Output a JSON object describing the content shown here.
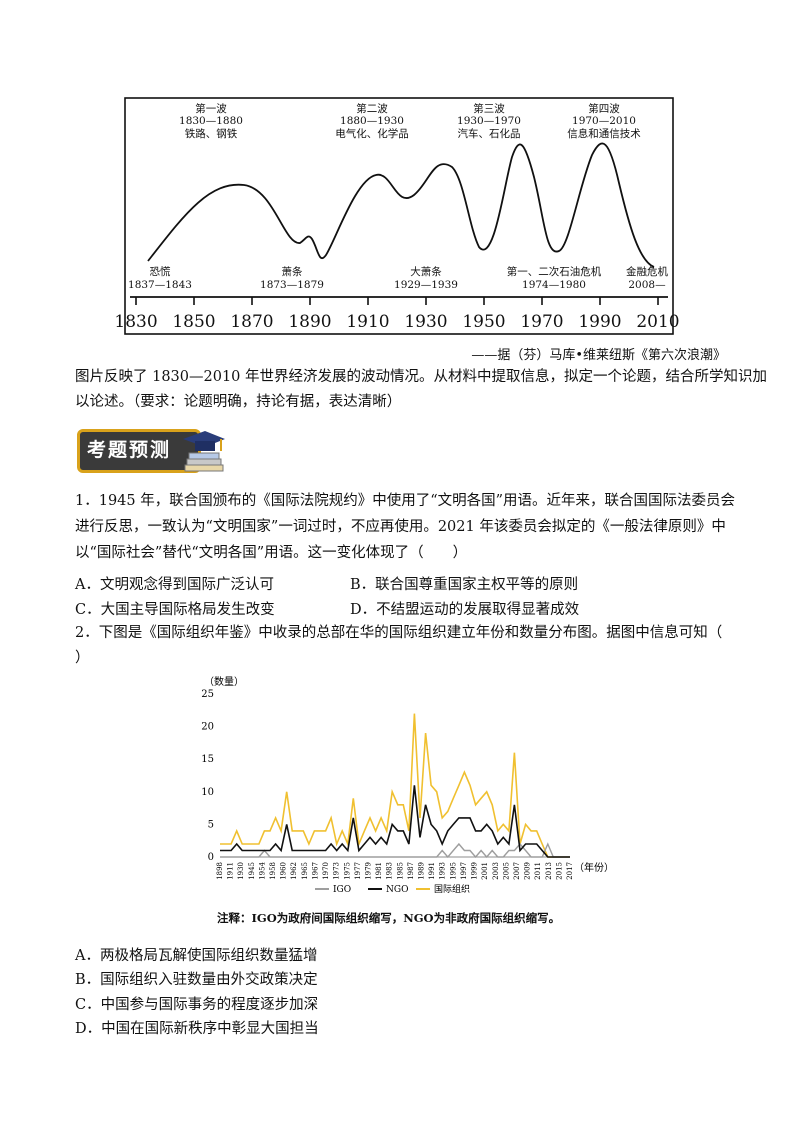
{
  "wave_figure": {
    "waves": [
      {
        "name": "第一波",
        "years": "1830—1880",
        "industry": "铁路、钢铁"
      },
      {
        "name": "第二波",
        "years": "1880—1930",
        "industry": "电气化、化学品"
      },
      {
        "name": "第三波",
        "years": "1930—1970",
        "industry": "汽车、石化品"
      },
      {
        "name": "第四波",
        "years": "1970—2010",
        "industry": "信息和通信技术"
      }
    ],
    "crises": [
      {
        "name": "恐慌",
        "years": "1837—1843"
      },
      {
        "name": "萧条",
        "years": "1873—1879"
      },
      {
        "name": "大萧条",
        "years": "1929—1939"
      },
      {
        "name": "第一、二次石油危机",
        "years": "1974—1980"
      },
      {
        "name": "金融危机",
        "years": "2008—"
      }
    ],
    "axis_labels": [
      "1830",
      "1850",
      "1870",
      "1890",
      "1910",
      "1930",
      "1950",
      "1970",
      "1990",
      "2010"
    ],
    "source": "——据（芬）马库•维莱纽斯《第六次浪潮》"
  },
  "q_intro": {
    "line1": "图片反映了 1830—2010 年世界经济发展的波动情况。从材料中提取信息，拟定一个论题，结合所学知识加",
    "line2": "以论述。（要求：论题明确，持论有据，表达清晰）"
  },
  "badge": {
    "label": "考题预测"
  },
  "q1": {
    "line1": "1．1945 年，联合国颁布的《国际法院规约》中使用了“文明各国”用语。近年来，联合国国际法委员会",
    "line2": "进行反思，一致认为“文明国家”一词过时，不应再使用。2021 年该委员会拟定的《一般法律原则》中",
    "line3": "以“国际社会”替代“文明各国”用语。这一变化体现了（　　）",
    "options": {
      "A": "A．文明观念得到国际广泛认可",
      "B": "B．联合国尊重国家主权平等的原则",
      "C": "C．大国主导国际格局发生改变",
      "D": "D．不结盟运动的发展取得显著成效"
    }
  },
  "q2": {
    "line1": "2．下图是《国际组织年鉴》中收录的总部在华的国际组织建立年份和数量分布图。据图中信息可知（",
    "line2": "）",
    "note": "注释：IGO为政府间国际组织缩写，NGO为非政府国际组织缩写。",
    "options": {
      "A": "A．两极格局瓦解使国际组织数量猛增",
      "B": "B．国际组织入驻数量由外交政策决定",
      "C": "C．中国参与国际事务的程度逐步加深",
      "D": "D．中国在国际新秩序中彰显大国担当"
    }
  },
  "colors": {
    "igo": "#9e9e9e",
    "ngo": "#111111",
    "total": "#f0c030"
  },
  "chart_data": {
    "type": "line",
    "ylabel": "（数量）",
    "xlabel": "（年份）",
    "ylim": [
      0,
      25
    ],
    "yticks": [
      "0",
      "5",
      "10",
      "15",
      "20",
      "25"
    ],
    "x_tick_labels": [
      "1898",
      "1911",
      "1930",
      "1945",
      "1954",
      "1958",
      "1960",
      "1962",
      "1965",
      "1967",
      "1970",
      "1973",
      "1975",
      "1977",
      "1979",
      "1981",
      "1983",
      "1985",
      "1987",
      "1989",
      "1991",
      "1993",
      "1995",
      "1997",
      "1999",
      "2001",
      "2003",
      "2005",
      "2007",
      "2009",
      "2011",
      "2013",
      "2015",
      "2017"
    ],
    "legend": [
      "IGO",
      "NGO",
      "国际组织"
    ],
    "legend_position": "bottom",
    "series": [
      {
        "name": "IGO",
        "values": [
          0,
          0,
          0,
          0,
          0,
          0,
          0,
          0,
          1,
          0,
          0,
          0,
          0,
          0,
          0,
          0,
          0,
          0,
          0,
          0,
          0,
          0,
          0,
          0,
          0,
          0,
          0,
          0,
          0,
          0,
          0,
          0,
          0,
          0,
          0,
          0,
          0,
          0,
          0,
          0,
          1,
          0,
          1,
          2,
          1,
          1,
          0,
          1,
          0,
          1,
          0,
          0,
          1,
          1,
          2,
          1,
          0,
          0,
          0,
          2,
          0,
          0,
          0,
          0
        ]
      },
      {
        "name": "NGO",
        "values": [
          1,
          1,
          1,
          2,
          1,
          1,
          1,
          1,
          1,
          1,
          2,
          1,
          5,
          1,
          1,
          1,
          1,
          1,
          1,
          1,
          2,
          1,
          2,
          1,
          6,
          1,
          2,
          3,
          2,
          3,
          2,
          5,
          4,
          4,
          2,
          11,
          3,
          8,
          5,
          4,
          2,
          4,
          5,
          6,
          6,
          6,
          4,
          4,
          5,
          4,
          2,
          3,
          2,
          8,
          1,
          2,
          2,
          2,
          1,
          0,
          0,
          0,
          0,
          0
        ]
      },
      {
        "name": "国际组织",
        "values": [
          2,
          2,
          2,
          4,
          2,
          2,
          2,
          2,
          4,
          4,
          6,
          4,
          10,
          4,
          4,
          4,
          2,
          4,
          4,
          4,
          6,
          2,
          4,
          2,
          9,
          2,
          4,
          6,
          4,
          6,
          4,
          10,
          8,
          8,
          4,
          22,
          6,
          19,
          11,
          10,
          6,
          7,
          9,
          11,
          13,
          11,
          8,
          9,
          10,
          8,
          4,
          5,
          4,
          16,
          2,
          5,
          4,
          4,
          2,
          0,
          0,
          0,
          0,
          0
        ]
      }
    ]
  }
}
